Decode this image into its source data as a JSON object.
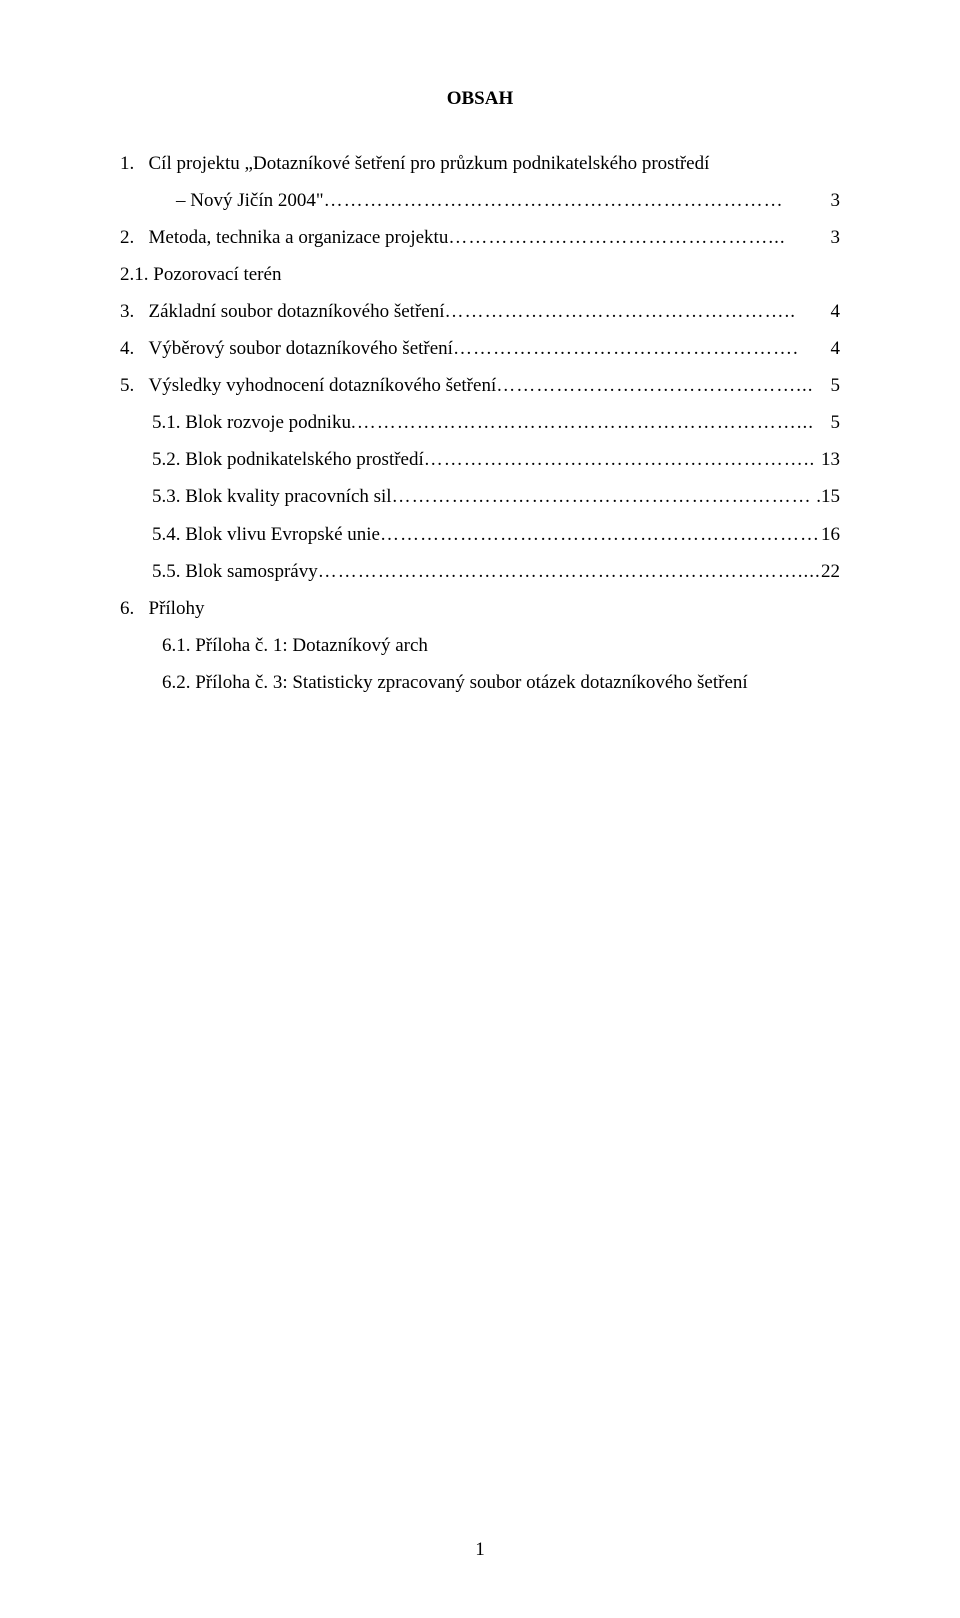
{
  "title": "OBSAH",
  "toc": [
    {
      "num": "1.",
      "label": "Cíl projektu „Dotazníkové šetření pro průzkum podnikatelského prostředí",
      "continuation": "– Nový Jičín 2004\"",
      "leader": "……………………………………………………………",
      "page": "3",
      "indent": "0"
    },
    {
      "num": "2.",
      "label": "Metoda, technika a organizace projektu",
      "leader": "…………………………………………...",
      "page": "3",
      "indent": "0"
    },
    {
      "num": "",
      "label": "2.1. Pozorovací terén",
      "leader": "",
      "page": "",
      "indent": "0"
    },
    {
      "num": "3.",
      "label": "Základní soubor dotazníkového šetření",
      "leader": "……………………………………………..",
      "page": "4",
      "indent": "0"
    },
    {
      "num": "4.",
      "label": "Výběrový soubor dotazníkového šetření",
      "leader": "…………………………………………….",
      "page": "4",
      "indent": "0"
    },
    {
      "num": "5.",
      "label": "Výsledky vyhodnocení dotazníkového šetření",
      "leader": "………………………………………...",
      "page": "5",
      "indent": "0"
    },
    {
      "num": "",
      "label": "5.1. Blok rozvoje podniku",
      "leader": ".…………………………………………………………...",
      "page": "5",
      "indent": "1"
    },
    {
      "num": "",
      "label": "5.2. Blok podnikatelského prostředí",
      "leader": "…………………………………………………..",
      "page": "13",
      "indent": "1"
    },
    {
      "num": "",
      "label": "5.3. Blok kvality pracovních sil",
      "leader": "………………………………………………………",
      "page": ".15",
      "indent": "1"
    },
    {
      "num": "",
      "label": "5.4. Blok vlivu Evropské unie",
      "leader": "…………………………………………………………",
      "page": "16",
      "indent": "1"
    },
    {
      "num": "",
      "label": "5.5. Blok samosprávy",
      "leader": "………………………………………………………………....",
      "page": "22",
      "indent": "1"
    },
    {
      "num": "6.",
      "label": "Přílohy",
      "leader": "",
      "page": "",
      "indent": "0"
    },
    {
      "num": "",
      "label": "6.1. Příloha č. 1: Dotazníkový arch",
      "leader": "",
      "page": "",
      "indent": "2"
    },
    {
      "num": "",
      "label": "6.2. Příloha č. 3: Statisticky zpracovaný soubor otázek dotazníkového šetření",
      "leader": "",
      "page": "",
      "indent": "2"
    }
  ],
  "page_number": "1",
  "colors": {
    "background": "#ffffff",
    "text": "#000000"
  },
  "typography": {
    "font_family": "Times New Roman",
    "font_size_pt": 14,
    "title_weight": "bold"
  }
}
